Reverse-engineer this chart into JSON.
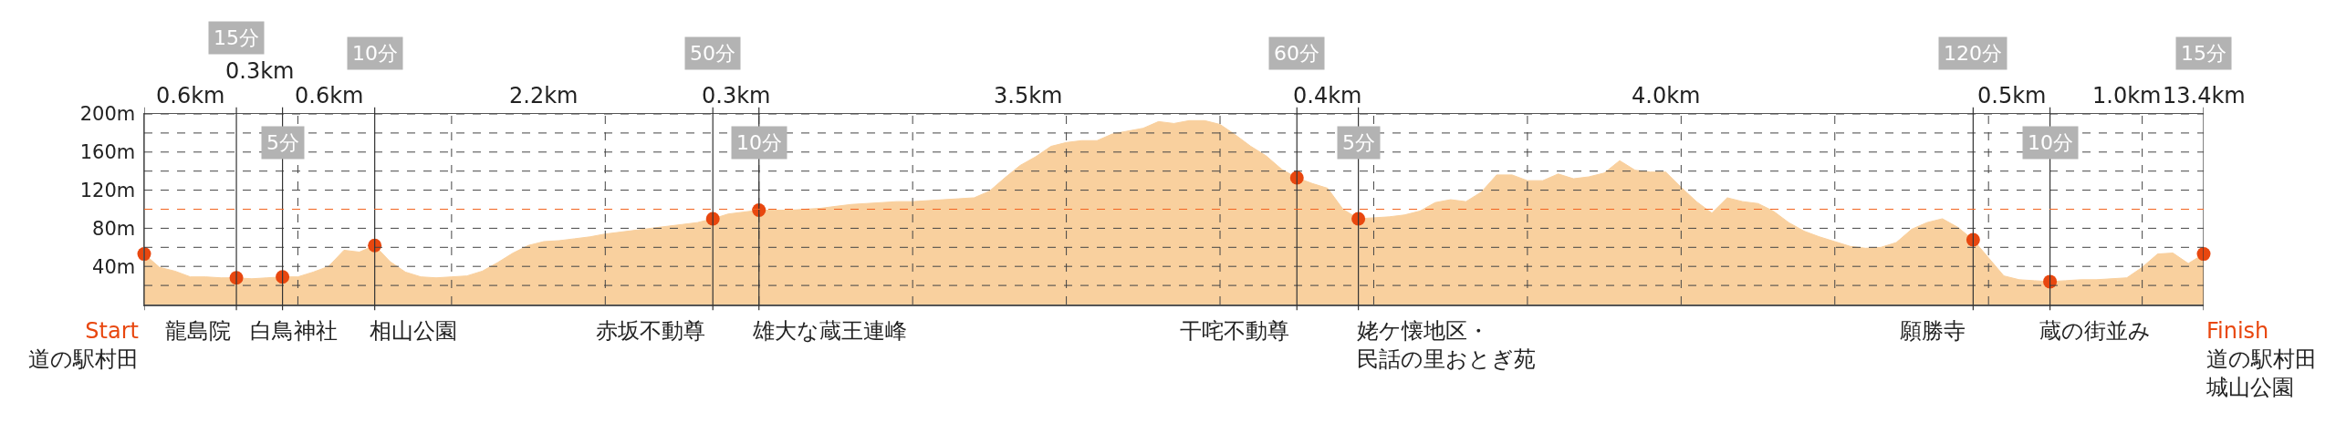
{
  "chart_data": {
    "type": "area",
    "ylim": [
      0,
      200
    ],
    "categories": [
      null,
      null,
      null,
      null,
      null,
      null,
      null,
      null,
      null,
      null,
      null,
      null,
      null,
      null,
      null,
      null,
      null,
      null,
      null,
      null,
      null,
      null,
      null,
      null,
      null,
      null,
      null,
      null,
      null,
      null,
      null,
      null,
      null,
      null,
      null,
      null,
      null,
      null,
      null,
      null,
      null,
      null,
      null,
      null,
      null,
      null,
      null,
      null,
      null,
      null,
      null,
      null,
      null,
      null,
      null,
      null,
      null,
      null,
      null,
      null,
      null,
      null,
      null,
      null,
      null,
      null,
      null,
      null,
      null,
      null,
      null,
      null,
      null,
      null,
      null,
      null,
      null,
      null,
      null,
      null,
      null,
      null,
      null,
      null,
      null,
      null,
      null,
      null,
      null,
      null,
      null,
      null,
      null,
      null,
      null,
      null,
      null,
      null,
      null,
      null,
      null,
      null,
      null,
      null,
      null,
      null,
      null,
      null,
      null,
      null,
      null,
      null,
      null,
      null,
      null,
      null,
      null,
      null,
      null,
      null,
      null,
      null,
      null,
      null,
      null,
      null,
      null,
      null,
      null,
      null,
      null,
      null,
      null,
      null,
      null
    ],
    "yticks": [
      {
        "value": 20,
        "label": null
      },
      {
        "value": 40,
        "label": "40m"
      },
      {
        "value": 60,
        "label": null
      },
      {
        "value": 80,
        "label": "80m"
      },
      {
        "value": 100,
        "label": null
      },
      {
        "value": 120,
        "label": "120m"
      },
      {
        "value": 140,
        "label": null
      },
      {
        "value": 160,
        "label": "160m"
      },
      {
        "value": 180,
        "label": null
      },
      {
        "value": 200,
        "label": "200m"
      }
    ],
    "grid": true,
    "ref_lines": [
      {
        "axis": "y",
        "value": 100,
        "color": "#f26522",
        "line_style": "dashed"
      }
    ],
    "series": [
      {
        "color": "#f9d09e",
        "values": [
          53,
          39,
          35,
          29,
          29,
          28,
          28,
          27,
          28,
          29,
          29,
          34,
          40,
          57,
          55,
          62,
          45,
          34,
          29,
          28,
          29,
          30,
          35,
          44,
          54,
          62,
          66,
          67,
          69,
          71,
          74,
          76,
          78,
          80,
          82,
          84,
          86,
          90,
          95,
          97,
          99,
          99,
          99,
          100,
          101,
          103,
          105,
          106,
          107,
          108,
          108,
          109,
          110,
          111,
          112,
          119,
          133,
          146,
          155,
          166,
          170,
          172,
          172,
          179,
          182,
          185,
          192,
          190,
          193,
          193,
          189,
          178,
          166,
          156,
          142,
          133,
          127,
          122,
          100,
          90,
          91,
          92,
          94,
          98,
          107,
          110,
          108,
          118,
          136,
          136,
          130,
          130,
          137,
          132,
          134,
          138,
          151,
          141,
          139,
          139,
          123,
          108,
          96,
          112,
          108,
          106,
          98,
          86,
          77,
          71,
          66,
          61,
          59,
          60,
          65,
          79,
          86,
          90,
          81,
          68,
          49,
          30,
          26,
          25,
          24,
          25,
          26,
          26,
          27,
          28,
          39,
          53,
          54,
          43,
          53
        ]
      },
      {
        "type": "scatter",
        "color": "#e8470f",
        "marker": "circle",
        "values": [
          53,
          null,
          null,
          null,
          null,
          null,
          28,
          null,
          null,
          29,
          null,
          null,
          null,
          null,
          null,
          62,
          null,
          null,
          null,
          null,
          null,
          null,
          null,
          null,
          null,
          null,
          null,
          null,
          null,
          null,
          null,
          null,
          null,
          null,
          null,
          null,
          null,
          90,
          null,
          null,
          99,
          null,
          null,
          null,
          null,
          null,
          null,
          null,
          null,
          null,
          null,
          null,
          null,
          null,
          null,
          null,
          null,
          null,
          null,
          null,
          null,
          null,
          null,
          null,
          null,
          null,
          null,
          null,
          null,
          null,
          null,
          null,
          null,
          null,
          null,
          133,
          null,
          null,
          null,
          90,
          null,
          null,
          null,
          null,
          null,
          null,
          null,
          null,
          null,
          null,
          null,
          null,
          null,
          null,
          null,
          null,
          null,
          null,
          null,
          null,
          null,
          null,
          null,
          null,
          null,
          null,
          null,
          null,
          null,
          null,
          null,
          null,
          null,
          null,
          null,
          null,
          null,
          null,
          null,
          68,
          null,
          null,
          null,
          null,
          24,
          null,
          null,
          null,
          null,
          null,
          null,
          null,
          null,
          null,
          53
        ]
      }
    ],
    "annotations": [
      "道の駅村田",
      "龍島院",
      "白鳥神社",
      "相山公園",
      "赤坂不動尊",
      "雄大な蔵王連峰",
      "干咤不動尊",
      "姥ケ懐地区・民話の里おとぎ苑",
      "願勝寺",
      "蔵の街並み",
      "道の駅村田城山公園",
      "0.6km",
      "0.3km",
      "0.6km",
      "2.2km",
      "0.3km",
      "3.5km",
      "0.4km",
      "4.0km",
      "0.5km",
      "1.0km",
      "13.4km",
      "15分",
      "5分",
      "10分",
      "50分",
      "10分",
      "60分",
      "5分",
      "120分",
      "10分",
      "15分",
      "Start",
      "Finish"
    ]
  }
}
